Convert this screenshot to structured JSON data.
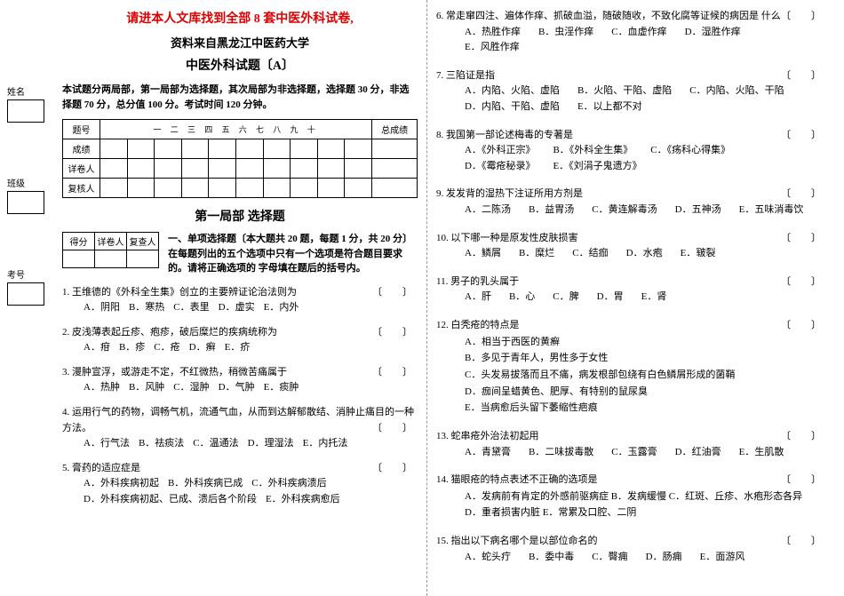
{
  "side": {
    "name": "姓名",
    "class": "班级",
    "id": "考号"
  },
  "header": {
    "red": "请进本人文库找到全部 8 套中医外科试卷,",
    "source": "资料来自黑龙江中医药大学",
    "title": "中医外科试题〔A〕",
    "instruct": "本试题分两局部，第一局部为选择题，其次局部为非选择题，选择题 30 分，非选择题 70 分，总分值 100 分。考试时间 120 分钟。"
  },
  "score_table": {
    "rows": [
      "题号",
      "成绩",
      "详卷人",
      "复核人"
    ],
    "cols": "一 二 三 四 五 六 七 八 九 十",
    "total": "总成绩"
  },
  "section1": {
    "title": "第一局部  选择题",
    "mini_rows": [
      "得分",
      "详卷人",
      "复查人"
    ],
    "instr": "一、单项选择题〔本大题共 20 题，每题 1 分，共 20 分〕在每题列出的五个选项中只有一个选项是符合题目要求的。请将正确选项的 字母填在题后的括号内。"
  },
  "left_questions": [
    {
      "n": "1.",
      "stem": "王维德的《外科全生集》创立的主要辨证论治法则为",
      "opts": [
        "A．阴阳",
        "B．寒热",
        "C．表里",
        "D．虚实",
        "E．内外"
      ]
    },
    {
      "n": "2.",
      "stem": "皮浅薄表起丘疹、疱疹，破后糜烂的疾病统称为",
      "opts": [
        "A．疳",
        "B．疹",
        "C．疮",
        "D．癣",
        "E．疥"
      ]
    },
    {
      "n": "3.",
      "stem": "漫肿宣浮，或游走不定，不红微热，稍微苦痛属于",
      "opts": [
        "A．热肿",
        "B．风肿",
        "C．湿肿",
        "D．气肿",
        "E．痰肿"
      ]
    },
    {
      "n": "4.",
      "stem": "运用行气的药物，调畅气机，流通气血，从而到达解郁散结、消肿止痛目的一种方法。",
      "opts": [
        "A．行气法",
        "B．祛痰法",
        "C．温通法",
        "D．理湿法",
        "E．内托法"
      ]
    },
    {
      "n": "5.",
      "stem": "膏药的适应症是",
      "opts": [
        "A．外科疾病初起",
        "B．外科疾病已成",
        "C．外科疾病溃后",
        "D．外科疾病初起、已成、溃后各个阶段",
        "E．外科疾病愈后"
      ]
    }
  ],
  "right_questions": [
    {
      "n": "6.",
      "stem": "常走窜四注、遍体作痒、抓破血溢，随破随收，不致化腐等证候的病因是 什么",
      "opts": [
        "A．热胜作痒",
        "B．虫淫作痒",
        "C．血虚作痒",
        "D．湿胜作痒",
        "E．风胜作痒"
      ]
    },
    {
      "n": "7.",
      "stem": "三陷证是指",
      "opts": [
        "A．内陷、火陷、虚陷",
        "B．火陷、干陷、虚陷",
        "C．内陷、火陷、干陷",
        "D．内陷、干陷、虚陷",
        "E．以上都不对"
      ]
    },
    {
      "n": "8.",
      "stem": "我国第一部论述梅毒的专著是",
      "opts": [
        "A．《外科正宗》",
        "B．《外科全生集》",
        "C．《疡科心得集》",
        "D．《霉疮秘录》",
        "E．《刘涓子鬼遗方》"
      ]
    },
    {
      "n": "9.",
      "stem": "发发背的湿热下注证所用方剂是",
      "opts": [
        "A．二陈汤",
        "B．益胃汤",
        "C．黄连解毒汤",
        "D．五神汤",
        "E．五味消毒饮"
      ]
    },
    {
      "n": "10.",
      "stem": "以下哪一种是原发性皮肤损害",
      "opts": [
        "A．鳞屑",
        "B．糜烂",
        "C．结痂",
        "D．水疱",
        "E．皲裂"
      ]
    },
    {
      "n": "11.",
      "stem": "男子的乳头属于",
      "opts": [
        "A．肝",
        "B．心",
        "C．脾",
        "D．胃",
        "E．肾"
      ]
    },
    {
      "n": "12.",
      "stem": "白秃疮的特点是",
      "multi": [
        "A．相当于西医的黄癣",
        "B．多见于青年人，男性多于女性",
        "C．头发易拔落而且不痛，病发根部包绕有白色鳞屑形成的菌鞘",
        "D．痂间呈蜡黄色、肥厚、有特别的鼠尿臭",
        "E．当病愈后头留下萎缩性疤痕"
      ]
    },
    {
      "n": "13.",
      "stem": "蛇串疮外治法初起用",
      "opts": [
        "A．青黛膏",
        "B．二味拔毒散",
        "C．玉露膏",
        "D．红油膏",
        "E．生肌散"
      ]
    },
    {
      "n": "14.",
      "stem": "猫眼疮的特点表述不正确的选项是",
      "multi": [
        "A．发病前有肯定的外感前驱病症   B．发病缓慢   C．红斑、丘疹、水疱形态各异",
        "D．重者损害内脏  E．常累及口腔、二阴"
      ]
    },
    {
      "n": "15.",
      "stem": "指出以下病名哪个是以部位命名的",
      "opts": [
        "A．蛇头疔",
        "B．委中毒",
        "C．臀痈",
        "D．肠痈",
        "E．面游风"
      ]
    }
  ]
}
